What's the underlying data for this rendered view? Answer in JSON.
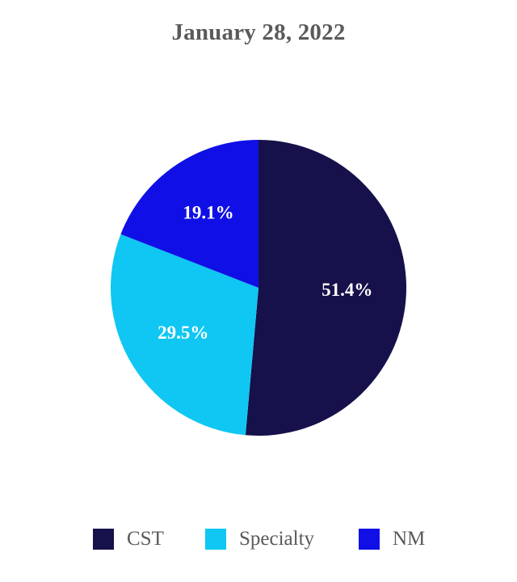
{
  "chart_data": {
    "type": "pie",
    "title": "January 28, 2022",
    "categories": [
      "CST",
      "Specialty",
      "NM"
    ],
    "values": [
      51.4,
      29.5,
      19.1
    ],
    "data_labels": [
      "51.4%",
      "29.5%",
      "19.1%"
    ],
    "colors": [
      "#16114a",
      "#0fc7f2",
      "#1010e6"
    ],
    "legend_position": "bottom",
    "start_angle": "12 o'clock",
    "direction": "clockwise"
  },
  "legend": [
    {
      "label": "CST",
      "color": "#16114a"
    },
    {
      "label": "Specialty",
      "color": "#0fc7f2"
    },
    {
      "label": "NM",
      "color": "#1010e6"
    }
  ]
}
